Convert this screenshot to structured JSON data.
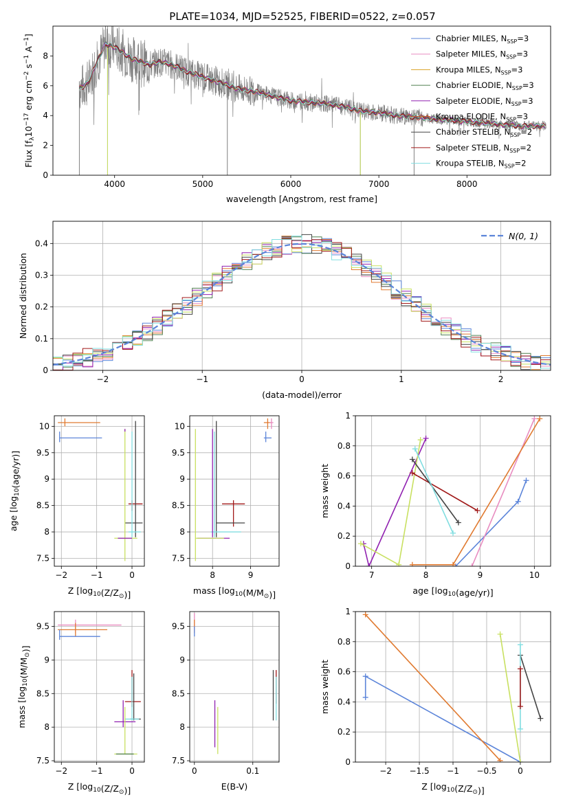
{
  "title": "PLATE=1034, MJD=52525, FIBERID=0522, z=0.057",
  "colors": {
    "blue": "#5b84d9",
    "pink": "#e88cc0",
    "orange": "#d9a020",
    "darkgreen": "#4f7f4f",
    "purple": "#9020b0",
    "brown": "#c06030",
    "darkgray": "#444444",
    "darkred": "#a01818",
    "cyan": "#80dde0",
    "orangeB": "#e07a30",
    "lime": "#c8e060",
    "spectrum": "#808080"
  },
  "chart_data": [
    {
      "type": "line",
      "title": "PLATE=1034, MJD=52525, FIBERID=0522, z=0.057",
      "xlabel": "wavelength [Angstrom, rest frame]",
      "ylabel_parts": [
        "Flux [f",
        "λ",
        "10",
        "−17",
        " erg cm",
        "−2",
        " s",
        "−1",
        " A",
        "−1",
        "]"
      ],
      "xlim": [
        3300,
        8950
      ],
      "ylim": [
        0,
        10
      ],
      "xticks": [
        4000,
        5000,
        6000,
        7000,
        8000
      ],
      "yticks": [
        0,
        2,
        4,
        6,
        8
      ],
      "grid": false,
      "legend": "top-right",
      "legend_entries": [
        {
          "label": "Chabrier MILES, N",
          "sub": "SSP",
          "tail": "=3",
          "color": "#5b84d9"
        },
        {
          "label": "Salpeter MILES, N",
          "sub": "SSP",
          "tail": "=3",
          "color": "#e88cc0"
        },
        {
          "label": "Kroupa MILES, N",
          "sub": "SSP",
          "tail": "=3",
          "color": "#d9a020"
        },
        {
          "label": "Chabrier ELODIE, N",
          "sub": "SSP",
          "tail": "=3",
          "color": "#4f7f4f"
        },
        {
          "label": "Salpeter ELODIE, N",
          "sub": "SSP",
          "tail": "=3",
          "color": "#9020b0"
        },
        {
          "label": "Kroupa ELODIE, N",
          "sub": "SSP",
          "tail": "=3",
          "color": "#c06030"
        },
        {
          "label": "Chabrier STELIB, N",
          "sub": "SSP",
          "tail": "=2",
          "color": "#444444"
        },
        {
          "label": "Salpeter STELIB, N",
          "sub": "SSP",
          "tail": "=2",
          "color": "#a01818"
        },
        {
          "label": "Kroupa STELIB, N",
          "sub": "SSP",
          "tail": "=2",
          "color": "#80dde0"
        }
      ],
      "continuum": [
        [
          3600,
          5.8
        ],
        [
          3700,
          6.2
        ],
        [
          3800,
          7.6
        ],
        [
          3900,
          8.8
        ],
        [
          4000,
          8.6
        ],
        [
          4100,
          8.2
        ],
        [
          4200,
          7.8
        ],
        [
          4300,
          7.6
        ],
        [
          4400,
          7.4
        ],
        [
          4500,
          7.6
        ],
        [
          4600,
          7.5
        ],
        [
          4700,
          7.3
        ],
        [
          4800,
          7.0
        ],
        [
          4900,
          6.8
        ],
        [
          5000,
          6.6
        ],
        [
          5200,
          6.2
        ],
        [
          5400,
          5.8
        ],
        [
          5600,
          5.6
        ],
        [
          5800,
          5.3
        ],
        [
          6000,
          5.0
        ],
        [
          6200,
          4.9
        ],
        [
          6400,
          4.8
        ],
        [
          6600,
          4.6
        ],
        [
          6800,
          4.3
        ],
        [
          7000,
          4.2
        ],
        [
          7200,
          4.0
        ],
        [
          7400,
          3.9
        ],
        [
          7600,
          3.8
        ],
        [
          7800,
          3.7
        ],
        [
          8000,
          3.6
        ],
        [
          8200,
          3.5
        ],
        [
          8400,
          3.4
        ],
        [
          8600,
          3.3
        ],
        [
          8800,
          3.3
        ]
      ]
    },
    {
      "type": "histogram",
      "xlabel": "(data-model)/error",
      "ylabel": "Normed distribution",
      "xlim": [
        -2.5,
        2.5
      ],
      "ylim": [
        0,
        0.47
      ],
      "xticks": [
        -2,
        -1,
        0,
        1,
        2
      ],
      "yticks": [
        0.0,
        0.1,
        0.2,
        0.3,
        0.4
      ],
      "grid": true,
      "legend": "top-right",
      "legend_label": "N(0, 1)",
      "bin_width": 0.1
    },
    {
      "type": "scatter",
      "xlabel": "Z [log10(Z/Z⊙)]",
      "ylabel": "age  [log10(age/yr)]",
      "xlim": [
        -2.2,
        0.35
      ],
      "ylim": [
        7.35,
        10.2
      ],
      "xticks": [
        -2,
        -1,
        0
      ],
      "yticks": [
        7.5,
        8.0,
        8.5,
        9.0,
        9.5,
        10.0
      ],
      "grid": true
    },
    {
      "type": "scatter",
      "xlabel": "mass [log10(M/M⊙)]",
      "xlim": [
        7.4,
        9.75
      ],
      "ylim": [
        7.35,
        10.2
      ],
      "xticks": [
        8,
        9
      ],
      "yticks": [
        7.5,
        8.0,
        8.5,
        9.0,
        9.5,
        10.0
      ],
      "grid": true
    },
    {
      "type": "line",
      "xlabel": "age  [log10(age/yr)]",
      "ylabel": "mass weight",
      "xlim": [
        6.7,
        10.3
      ],
      "ylim": [
        0,
        1
      ],
      "xticks": [
        7,
        8,
        9,
        10
      ],
      "yticks": [
        0.0,
        0.2,
        0.4,
        0.6,
        0.8,
        1.0
      ],
      "grid": true,
      "series": [
        {
          "color": "#5b84d9",
          "x": [
            8.55,
            9.7,
            9.85
          ],
          "y": [
            0.0,
            0.43,
            0.57
          ]
        },
        {
          "color": "#e88cc0",
          "x": [
            8.85,
            10.0
          ],
          "y": [
            0.0,
            0.98
          ]
        },
        {
          "color": "#e07a30",
          "x": [
            7.75,
            8.5,
            10.1
          ],
          "y": [
            0.01,
            0.01,
            0.98
          ]
        },
        {
          "color": "#9020b0",
          "x": [
            6.85,
            6.95,
            8.0
          ],
          "y": [
            0.15,
            0.0,
            0.85
          ]
        },
        {
          "color": "#c8e060",
          "x": [
            6.8,
            7.5,
            7.9
          ],
          "y": [
            0.15,
            0.01,
            0.84
          ]
        },
        {
          "color": "#a01818",
          "x": [
            7.75,
            8.95
          ],
          "y": [
            0.62,
            0.37
          ]
        },
        {
          "color": "#444444",
          "x": [
            7.75,
            8.6
          ],
          "y": [
            0.71,
            0.29
          ]
        },
        {
          "color": "#80dde0",
          "x": [
            7.8,
            8.5
          ],
          "y": [
            0.78,
            0.22
          ]
        }
      ]
    },
    {
      "type": "scatter",
      "xlabel": "Z [log10(Z/Z⊙)]",
      "ylabel": "mass [log10(M/M⊙)]",
      "xlim": [
        -2.2,
        0.35
      ],
      "ylim": [
        7.48,
        9.72
      ],
      "xticks": [
        -2,
        -1,
        0
      ],
      "yticks": [
        7.5,
        8.0,
        8.5,
        9.0,
        9.5
      ],
      "grid": true
    },
    {
      "type": "scatter",
      "xlabel": "E(B-V)",
      "xlim": [
        -0.008,
        0.145
      ],
      "ylim": [
        7.48,
        9.72
      ],
      "xticks": [
        0.0,
        0.1
      ],
      "yticks": [
        7.5,
        8.0,
        8.5,
        9.0,
        9.5
      ],
      "grid": true
    },
    {
      "type": "line",
      "xlabel": "Z [log10(Z/Z⊙)]",
      "ylabel": "mass weight",
      "xlim": [
        -2.45,
        0.45
      ],
      "ylim": [
        0,
        1
      ],
      "xticks": [
        -2.0,
        -1.5,
        -1.0,
        -0.5,
        0.0
      ],
      "yticks": [
        0.0,
        0.2,
        0.4,
        0.6,
        0.8,
        1.0
      ],
      "grid": true,
      "series": [
        {
          "color": "#5b84d9",
          "x": [
            0.0,
            -2.3,
            -2.3
          ],
          "y": [
            0.0,
            0.57,
            0.43
          ]
        },
        {
          "color": "#e07a30",
          "x": [
            -2.3,
            -0.3
          ],
          "y": [
            0.98,
            0.01
          ]
        },
        {
          "color": "#c8e060",
          "x": [
            -0.3,
            0.0
          ],
          "y": [
            0.85,
            0.0
          ]
        },
        {
          "color": "#444444",
          "x": [
            0.0,
            0.3
          ],
          "y": [
            0.71,
            0.29
          ]
        },
        {
          "color": "#80dde0",
          "x": [
            0.0,
            0.0
          ],
          "y": [
            0.78,
            0.22
          ]
        },
        {
          "color": "#a01818",
          "x": [
            0.0,
            0.0
          ],
          "y": [
            0.62,
            0.37
          ]
        }
      ]
    }
  ]
}
